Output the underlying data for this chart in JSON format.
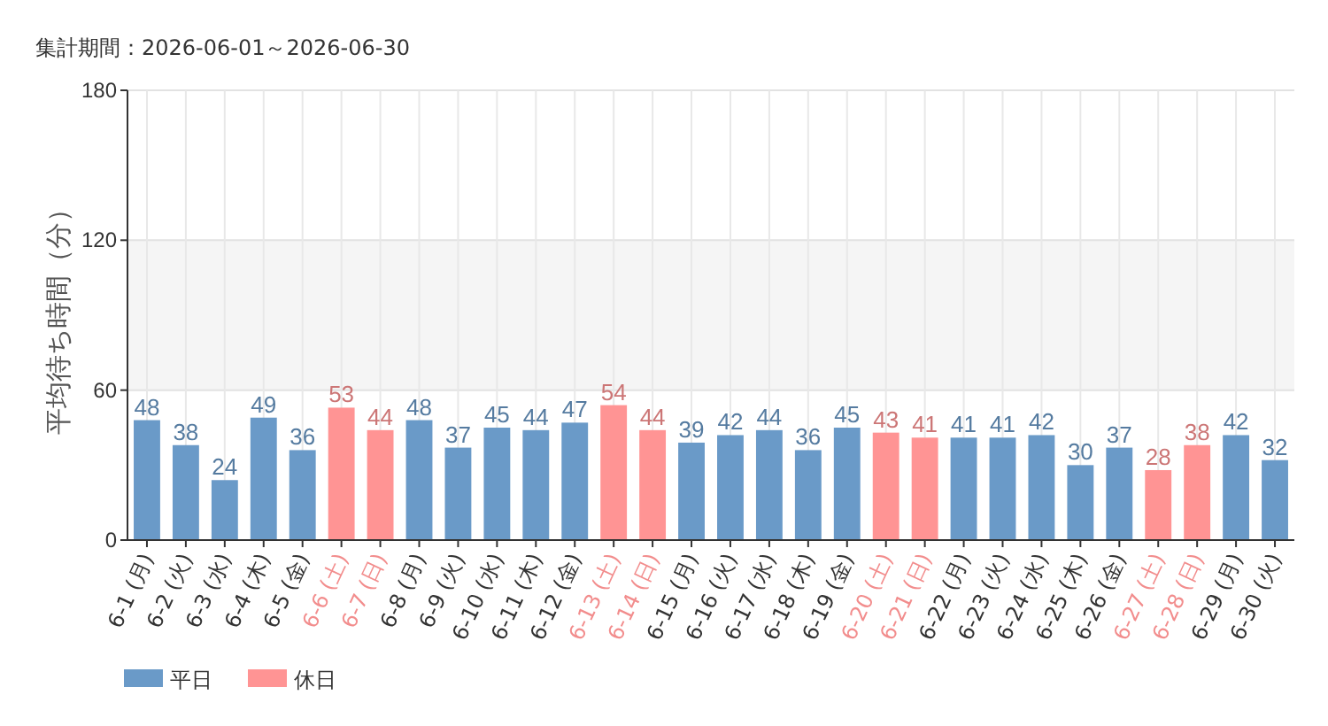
{
  "chart_data": {
    "type": "bar",
    "title": "集計期間：2026-06-01～2026-06-30",
    "ylabel": "平均待ち時間（分）",
    "categories": [
      "6-1 (月)",
      "6-2 (火)",
      "6-3 (水)",
      "6-4 (木)",
      "6-5 (金)",
      "6-6 (土)",
      "6-7 (日)",
      "6-8 (月)",
      "6-9 (火)",
      "6-10 (水)",
      "6-11 (木)",
      "6-12 (金)",
      "6-13 (土)",
      "6-14 (日)",
      "6-15 (月)",
      "6-16 (火)",
      "6-17 (水)",
      "6-18 (木)",
      "6-19 (金)",
      "6-20 (土)",
      "6-21 (日)",
      "6-22 (月)",
      "6-23 (火)",
      "6-24 (水)",
      "6-25 (木)",
      "6-26 (金)",
      "6-27 (土)",
      "6-28 (日)",
      "6-29 (月)",
      "6-30 (火)"
    ],
    "series": [
      {
        "name": "平日",
        "color": "#6a9ac8",
        "values": [
          48,
          38,
          24,
          49,
          36,
          null,
          null,
          48,
          37,
          45,
          44,
          47,
          null,
          null,
          39,
          42,
          44,
          36,
          45,
          null,
          null,
          41,
          41,
          42,
          30,
          37,
          null,
          null,
          42,
          32
        ]
      },
      {
        "name": "休日",
        "color": "#ff9494",
        "values": [
          null,
          null,
          null,
          null,
          null,
          53,
          44,
          null,
          null,
          null,
          null,
          null,
          54,
          44,
          null,
          null,
          null,
          null,
          null,
          43,
          41,
          null,
          null,
          null,
          null,
          null,
          28,
          38,
          null,
          null
        ]
      }
    ],
    "ylim": [
      0,
      180
    ],
    "yticks": [
      0,
      60,
      120,
      180
    ],
    "grid": true,
    "data_labels": true,
    "legend": "bottom left",
    "bands": [
      {
        "axis": "y",
        "from": 60,
        "to": 120,
        "color": "#f5f5f5"
      }
    ]
  }
}
